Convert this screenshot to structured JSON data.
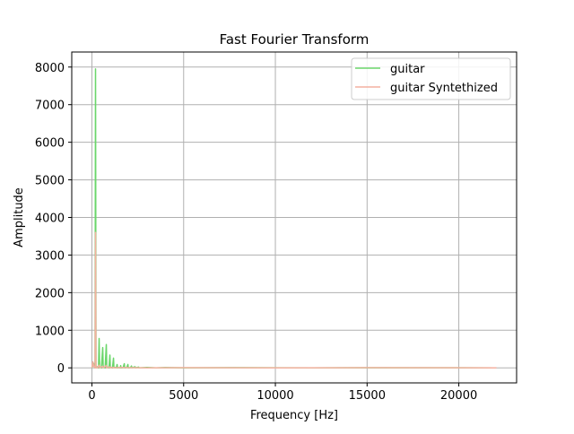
{
  "chart_data": {
    "type": "line",
    "title": "Fast Fourier Transform",
    "xlabel": "Frequency [Hz]",
    "ylabel": "Amplitude",
    "xlim": [
      -1100,
      23150
    ],
    "ylim": [
      -400,
      8400
    ],
    "xticks": [
      0,
      5000,
      10000,
      15000,
      20000
    ],
    "yticks": [
      0,
      1000,
      2000,
      3000,
      4000,
      5000,
      6000,
      7000,
      8000
    ],
    "grid": true,
    "legend_position": "upper right",
    "series": [
      {
        "name": "guitar",
        "color": "#6ad66a",
        "points": [
          [
            0,
            0
          ],
          [
            90,
            120
          ],
          [
            130,
            60
          ],
          [
            170,
            0
          ],
          [
            196,
            7950
          ],
          [
            222,
            0
          ],
          [
            280,
            30
          ],
          [
            320,
            10
          ],
          [
            360,
            0
          ],
          [
            392,
            780
          ],
          [
            420,
            0
          ],
          [
            470,
            20
          ],
          [
            520,
            0
          ],
          [
            588,
            540
          ],
          [
            615,
            0
          ],
          [
            660,
            20
          ],
          [
            720,
            0
          ],
          [
            784,
            620
          ],
          [
            810,
            0
          ],
          [
            870,
            20
          ],
          [
            930,
            0
          ],
          [
            980,
            340
          ],
          [
            1005,
            0
          ],
          [
            1060,
            10
          ],
          [
            1120,
            0
          ],
          [
            1176,
            260
          ],
          [
            1200,
            0
          ],
          [
            1280,
            10
          ],
          [
            1330,
            0
          ],
          [
            1372,
            90
          ],
          [
            1400,
            0
          ],
          [
            1480,
            10
          ],
          [
            1540,
            0
          ],
          [
            1568,
            60
          ],
          [
            1590,
            0
          ],
          [
            1700,
            5
          ],
          [
            1764,
            110
          ],
          [
            1790,
            0
          ],
          [
            1900,
            10
          ],
          [
            1960,
            90
          ],
          [
            1985,
            0
          ],
          [
            2100,
            5
          ],
          [
            2156,
            50
          ],
          [
            2180,
            0
          ],
          [
            2352,
            30
          ],
          [
            2375,
            0
          ],
          [
            2548,
            20
          ],
          [
            2570,
            0
          ],
          [
            3000,
            10
          ],
          [
            3500,
            0
          ],
          [
            4000,
            8
          ],
          [
            5000,
            0
          ],
          [
            8000,
            5
          ],
          [
            12000,
            0
          ],
          [
            16000,
            3
          ],
          [
            22050,
            0
          ]
        ]
      },
      {
        "name": "guitar Syntethized",
        "color": "#f4b0a0",
        "points": [
          [
            0,
            0
          ],
          [
            50,
            160
          ],
          [
            100,
            40
          ],
          [
            150,
            20
          ],
          [
            175,
            0
          ],
          [
            196,
            3600
          ],
          [
            218,
            0
          ],
          [
            260,
            20
          ],
          [
            300,
            0
          ],
          [
            392,
            70
          ],
          [
            420,
            0
          ],
          [
            588,
            40
          ],
          [
            610,
            0
          ],
          [
            784,
            60
          ],
          [
            810,
            0
          ],
          [
            980,
            25
          ],
          [
            1000,
            0
          ],
          [
            1176,
            15
          ],
          [
            1200,
            0
          ],
          [
            1500,
            10
          ],
          [
            2000,
            5
          ],
          [
            3000,
            0
          ],
          [
            5000,
            5
          ],
          [
            10000,
            0
          ],
          [
            15000,
            5
          ],
          [
            22050,
            0
          ]
        ]
      }
    ]
  }
}
